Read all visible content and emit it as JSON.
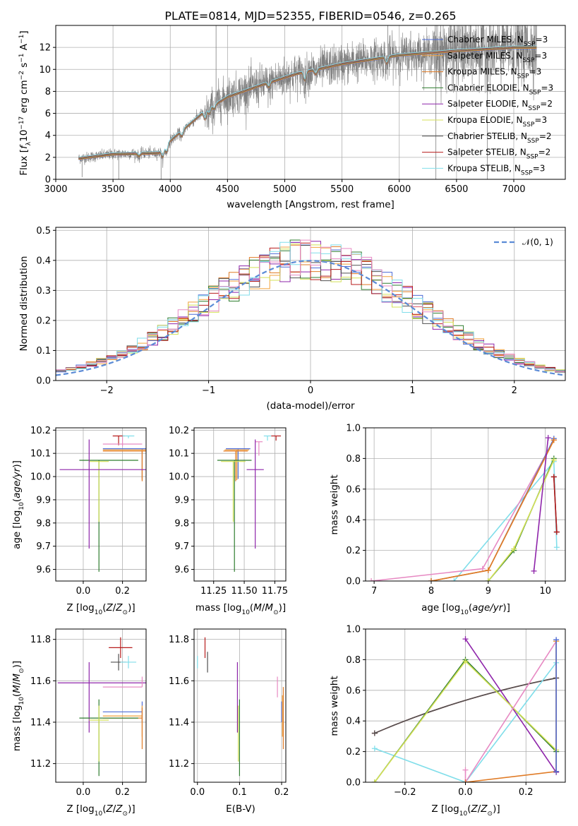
{
  "chart_data": [
    {
      "id": "spectrum",
      "type": "line",
      "title": "PLATE=0814, MJD=52355, FIBERID=0546, z=0.265",
      "xlabel": "wavelength [Angstrom, rest frame]",
      "ylabel": "Flux [f_λ 10^-17 erg cm^-2 s^-1 A^-1]",
      "xlim": [
        3000,
        7450
      ],
      "ylim": [
        0,
        14
      ],
      "xticks": [
        3000,
        3500,
        4000,
        4500,
        5000,
        5500,
        6000,
        6500,
        7000
      ],
      "yticks": [
        0,
        2,
        4,
        6,
        8,
        10,
        12
      ],
      "grid": true,
      "legend_position": "top-right",
      "continuum_approx": [
        [
          3200,
          1.9
        ],
        [
          3500,
          2.3
        ],
        [
          3900,
          2.4
        ],
        [
          4000,
          3.5
        ],
        [
          4300,
          6.2
        ],
        [
          4500,
          7.5
        ],
        [
          4800,
          8.6
        ],
        [
          5100,
          9.6
        ],
        [
          5500,
          10.5
        ],
        [
          6000,
          11.3
        ],
        [
          6500,
          11.7
        ],
        [
          7000,
          12.0
        ],
        [
          7200,
          12.0
        ]
      ],
      "legend": [
        {
          "name": "Chabrier MILES, N_SSP=3",
          "color": "#4d6bd6"
        },
        {
          "name": "Salpeter MILES, N_SSP=3",
          "color": "#f2a23c"
        },
        {
          "name": "Kroupa MILES, N_SSP=3",
          "color": "#e07b26"
        },
        {
          "name": "Chabrier ELODIE, N_SSP=3",
          "color": "#2f7d2f"
        },
        {
          "name": "Salpeter ELODIE, N_SSP=2",
          "color": "#8e24aa"
        },
        {
          "name": "Kroupa ELODIE, N_SSP=3",
          "color": "#d4e157"
        },
        {
          "name": "Chabrier STELIB, N_SSP=2",
          "color": "#505050"
        },
        {
          "name": "Salpeter STELIB, N_SSP=2",
          "color": "#b71c1c"
        },
        {
          "name": "Kroupa STELIB, N_SSP=3",
          "color": "#80deea"
        }
      ]
    },
    {
      "id": "residual-hist",
      "type": "line",
      "xlabel": "(data-model)/error",
      "ylabel": "Normed distribution",
      "xlim": [
        -2.5,
        2.5
      ],
      "ylim": [
        0,
        0.51
      ],
      "xticks": [
        -2,
        -1,
        0,
        1,
        2
      ],
      "yticks": [
        0.0,
        0.1,
        0.2,
        0.3,
        0.4,
        0.5
      ],
      "grid": true,
      "legend_position": "top-right",
      "reference_curve": {
        "name": "𝒩(0, 1)",
        "color": "#5b8bd6",
        "mean": 0,
        "sigma": 1
      },
      "bin_width": 0.1,
      "histogram_colors": [
        "#4d6bd6",
        "#f2a23c",
        "#e07b26",
        "#2f7d2f",
        "#8e24aa",
        "#d4e157",
        "#505050",
        "#b71c1c",
        "#80deea",
        "#e78ac3"
      ]
    },
    {
      "id": "age-vs-Z",
      "type": "scatter",
      "xlabel": "Z [log10(Z/Z☉)]",
      "ylabel": "age  [log10(age/yr)]",
      "xlim": [
        -0.14,
        0.32
      ],
      "ylim": [
        9.55,
        10.21
      ],
      "xticks": [
        0.0,
        0.2
      ],
      "yticks": [
        9.6,
        9.7,
        9.8,
        9.9,
        10.0,
        10.1,
        10.2
      ],
      "grid": true,
      "points": [
        {
          "x": 0.18,
          "y": 10.175,
          "xerr": 0.03,
          "yerr": [
            0.04,
            0.0
          ],
          "color": "#b71c1c"
        },
        {
          "x": 0.23,
          "y": 10.175,
          "xerr": 0.03,
          "yerr": [
            0.01,
            0.0
          ],
          "color": "#80deea"
        },
        {
          "x": 0.2,
          "y": 10.14,
          "xerr": 0.1,
          "yerr": [
            0.01,
            0.03
          ],
          "color": "#e78ac3"
        },
        {
          "x": 0.3,
          "y": 10.12,
          "xerr": 0.2,
          "yerr": [
            0.13,
            0.0
          ],
          "color": "#4d6bd6"
        },
        {
          "x": 0.3,
          "y": 10.115,
          "xerr": 0.2,
          "yerr": [
            0.13,
            0.0
          ],
          "color": "#f2a23c"
        },
        {
          "x": 0.3,
          "y": 10.11,
          "xerr": 0.2,
          "yerr": [
            0.13,
            0.0
          ],
          "color": "#e07b26"
        },
        {
          "x": 0.08,
          "y": 10.07,
          "xerr": [
            0.1,
            0.2
          ],
          "yerr": [
            0.48,
            0.0
          ],
          "color": "#2f7d2f"
        },
        {
          "x": 0.08,
          "y": 10.065,
          "xerr": [
            0.05,
            0.05
          ],
          "yerr": [
            0.26,
            0.0
          ],
          "color": "#d4e157"
        },
        {
          "x": 0.03,
          "y": 10.03,
          "xerr": [
            0.15,
            0.3
          ],
          "yerr": [
            0.34,
            0.13
          ],
          "color": "#8e24aa"
        }
      ]
    },
    {
      "id": "age-vs-mass",
      "type": "scatter",
      "xlabel": "mass [log10(M/M☉)]",
      "ylabel": "",
      "xlim": [
        11.09,
        11.84
      ],
      "ylim": [
        9.55,
        10.21
      ],
      "xticks": [
        11.25,
        11.5,
        11.75
      ],
      "yticks": [
        9.6,
        9.7,
        9.8,
        9.9,
        10.0,
        10.1,
        10.2
      ],
      "grid": true,
      "points": [
        {
          "x": 11.76,
          "y": 10.175,
          "xerr": 0.04,
          "yerr": [
            0.02,
            0.0
          ],
          "color": "#b71c1c"
        },
        {
          "x": 11.69,
          "y": 10.175,
          "xerr": 0.03,
          "yerr": [
            0.02,
            0.0
          ],
          "color": "#80deea"
        },
        {
          "x": 11.62,
          "y": 10.15,
          "xerr": 0.03,
          "yerr": [
            0.06,
            0.0
          ],
          "color": "#e78ac3"
        },
        {
          "x": 11.45,
          "y": 10.12,
          "xerr": 0.1,
          "yerr": [
            0.13,
            0.0
          ],
          "color": "#4d6bd6"
        },
        {
          "x": 11.44,
          "y": 10.115,
          "xerr": 0.1,
          "yerr": [
            0.13,
            0.0
          ],
          "color": "#f2a23c"
        },
        {
          "x": 11.43,
          "y": 10.11,
          "xerr": 0.1,
          "yerr": [
            0.13,
            0.0
          ],
          "color": "#e07b26"
        },
        {
          "x": 11.42,
          "y": 10.07,
          "xerr": 0.14,
          "yerr": [
            0.48,
            0.0
          ],
          "color": "#2f7d2f"
        },
        {
          "x": 11.41,
          "y": 10.065,
          "xerr": 0.1,
          "yerr": [
            0.26,
            0.0
          ],
          "color": "#d4e157"
        },
        {
          "x": 11.59,
          "y": 10.03,
          "xerr": 0.07,
          "yerr": [
            0.34,
            0.13
          ],
          "color": "#8e24aa"
        }
      ]
    },
    {
      "id": "mass-weight-vs-age",
      "type": "line",
      "xlabel": "age  [log10(age/yr)]",
      "ylabel": "mass weight",
      "xlim": [
        6.85,
        10.35
      ],
      "ylim": [
        0,
        1
      ],
      "xticks": [
        7,
        8,
        9,
        10
      ],
      "yticks": [
        0.0,
        0.2,
        0.4,
        0.6,
        0.8,
        1.0
      ],
      "grid": true,
      "series": [
        {
          "color": "#80deea",
          "x": [
            8.4,
            10.15,
            10.2
          ],
          "y": [
            0.0,
            0.78,
            0.22
          ]
        },
        {
          "color": "#e78ac3",
          "x": [
            6.95,
            8.9,
            10.15
          ],
          "y": [
            0.0,
            0.08,
            0.92
          ]
        },
        {
          "color": "#4d6bd6",
          "x": [
            8.0,
            9.0,
            10.15
          ],
          "y": [
            0.0,
            0.07,
            0.93
          ]
        },
        {
          "color": "#f2a23c",
          "x": [
            8.0,
            9.0,
            10.15
          ],
          "y": [
            0.0,
            0.07,
            0.92
          ]
        },
        {
          "color": "#e07b26",
          "x": [
            8.0,
            9.0,
            10.15
          ],
          "y": [
            0.0,
            0.07,
            0.92
          ]
        },
        {
          "color": "#2f7d2f",
          "x": [
            9.0,
            9.45,
            10.15
          ],
          "y": [
            0.0,
            0.2,
            0.8
          ]
        },
        {
          "color": "#d4e157",
          "x": [
            9.0,
            9.45,
            10.15
          ],
          "y": [
            0.0,
            0.21,
            0.79
          ]
        },
        {
          "color": "#8e24aa",
          "x": [
            9.8,
            10.05
          ],
          "y": [
            0.065,
            0.935
          ]
        },
        {
          "color": "#505050",
          "x": [
            10.15,
            10.2
          ],
          "y": [
            0.68,
            0.32
          ]
        },
        {
          "color": "#b71c1c",
          "x": [
            10.15,
            10.2
          ],
          "y": [
            0.68,
            0.32
          ]
        }
      ]
    },
    {
      "id": "mass-vs-Z",
      "type": "scatter",
      "xlabel": "Z [log10(Z/Z☉)]",
      "ylabel": "mass [log10(M/M☉)]",
      "xlim": [
        -0.14,
        0.32
      ],
      "ylim": [
        11.11,
        11.85
      ],
      "xticks": [
        0.0,
        0.2
      ],
      "yticks": [
        11.2,
        11.4,
        11.6,
        11.8
      ],
      "grid": true,
      "points": [
        {
          "x": 0.19,
          "y": 11.76,
          "xerr": 0.06,
          "yerr": 0.05,
          "color": "#b71c1c"
        },
        {
          "x": 0.18,
          "y": 11.69,
          "xerr": 0.04,
          "yerr": 0.04,
          "color": "#505050"
        },
        {
          "x": 0.23,
          "y": 11.69,
          "xerr": 0.04,
          "yerr": 0.03,
          "color": "#80deea"
        },
        {
          "x": 0.03,
          "y": 11.59,
          "xerr": [
            0.16,
            0.3
          ],
          "yerr": [
            0.24,
            0.1
          ],
          "color": "#8e24aa"
        },
        {
          "x": 0.3,
          "y": 11.57,
          "xerr": [
            0.2,
            0.0
          ],
          "yerr": [
            0.0,
            0.05
          ],
          "color": "#e78ac3"
        },
        {
          "x": 0.3,
          "y": 11.45,
          "xerr": [
            0.2,
            0.0
          ],
          "yerr": [
            0.05,
            0.05
          ],
          "color": "#4d6bd6"
        },
        {
          "x": 0.3,
          "y": 11.43,
          "xerr": [
            0.2,
            0.0
          ],
          "yerr": [
            0.1,
            0.05
          ],
          "color": "#f2a23c"
        },
        {
          "x": 0.3,
          "y": 11.42,
          "xerr": [
            0.2,
            0.0
          ],
          "yerr": [
            0.15,
            0.05
          ],
          "color": "#e07b26"
        },
        {
          "x": 0.08,
          "y": 11.42,
          "xerr": [
            0.1,
            0.2
          ],
          "yerr": [
            0.28,
            0.09
          ],
          "color": "#2f7d2f"
        },
        {
          "x": 0.08,
          "y": 11.41,
          "xerr": [
            0.05,
            0.05
          ],
          "yerr": [
            0.2,
            0.07
          ],
          "color": "#d4e157"
        }
      ]
    },
    {
      "id": "mass-vs-ebv",
      "type": "scatter",
      "xlabel": "E(B-V)",
      "ylabel": "",
      "xlim": [
        -0.008,
        0.21
      ],
      "ylim": [
        11.11,
        11.85
      ],
      "xticks": [
        0.0,
        0.1,
        0.2
      ],
      "yticks": [
        11.2,
        11.4,
        11.6,
        11.8
      ],
      "grid": true,
      "points": [
        {
          "x": 0.018,
          "y": 11.76,
          "yerr": 0.05,
          "color": "#b71c1c"
        },
        {
          "x": 0.024,
          "y": 11.69,
          "yerr": 0.05,
          "color": "#505050"
        },
        {
          "x": 0.0,
          "y": 11.69,
          "yerr": 0.03,
          "color": "#80deea"
        },
        {
          "x": 0.095,
          "y": 11.59,
          "yerr": [
            0.24,
            0.1
          ],
          "color": "#8e24aa"
        },
        {
          "x": 0.19,
          "y": 11.57,
          "yerr": [
            0.05,
            0.05
          ],
          "color": "#e78ac3"
        },
        {
          "x": 0.1,
          "y": 11.42,
          "yerr": [
            0.28,
            0.09
          ],
          "color": "#2f7d2f"
        },
        {
          "x": 0.097,
          "y": 11.41,
          "yerr": [
            0.2,
            0.07
          ],
          "color": "#d4e157"
        },
        {
          "x": 0.2,
          "y": 11.45,
          "yerr": 0.05,
          "color": "#4d6bd6"
        },
        {
          "x": 0.202,
          "y": 11.43,
          "yerr": 0.1,
          "color": "#f2a23c"
        },
        {
          "x": 0.204,
          "y": 11.42,
          "yerr": 0.15,
          "color": "#e07b26"
        }
      ]
    },
    {
      "id": "mass-weight-vs-Z",
      "type": "line",
      "xlabel": "Z [log10(Z/Z☉)]",
      "ylabel": "mass weight",
      "xlim": [
        -0.33,
        0.33
      ],
      "ylim": [
        0,
        1
      ],
      "xticks": [
        -0.2,
        0.0,
        0.2
      ],
      "yticks": [
        0.0,
        0.2,
        0.4,
        0.6,
        0.8,
        1.0
      ],
      "grid": true,
      "series": [
        {
          "color": "#b71c1c",
          "x": [
            -0.3,
            0.3
          ],
          "y": [
            0.32,
            0.68
          ],
          "curved": true
        },
        {
          "color": "#505050",
          "x": [
            -0.3,
            0.3
          ],
          "y": [
            0.32,
            0.68
          ],
          "curved": true
        },
        {
          "color": "#80deea",
          "x": [
            -0.3,
            0.0,
            0.3
          ],
          "y": [
            0.22,
            0.0,
            0.78
          ]
        },
        {
          "color": "#8e24aa",
          "x": [
            0.0,
            0.3
          ],
          "y": [
            0.935,
            0.065
          ]
        },
        {
          "color": "#2f7d2f",
          "x": [
            -0.3,
            0.0,
            0.3
          ],
          "y": [
            0.0,
            0.8,
            0.2
          ]
        },
        {
          "color": "#d4e157",
          "x": [
            -0.3,
            0.0,
            0.3
          ],
          "y": [
            0.0,
            0.79,
            0.21
          ]
        },
        {
          "color": "#e78ac3",
          "x": [
            0.0,
            0.0,
            0.3
          ],
          "y": [
            0.08,
            0.0,
            0.92
          ]
        },
        {
          "color": "#e07b26",
          "x": [
            0.0,
            0.3,
            0.3
          ],
          "y": [
            0.0,
            0.07,
            0.92
          ]
        },
        {
          "color": "#f2a23c",
          "x": [
            0.3,
            0.3
          ],
          "y": [
            0.07,
            0.92
          ]
        },
        {
          "color": "#4d6bd6",
          "x": [
            0.3,
            0.3
          ],
          "y": [
            0.07,
            0.93
          ]
        }
      ]
    }
  ]
}
